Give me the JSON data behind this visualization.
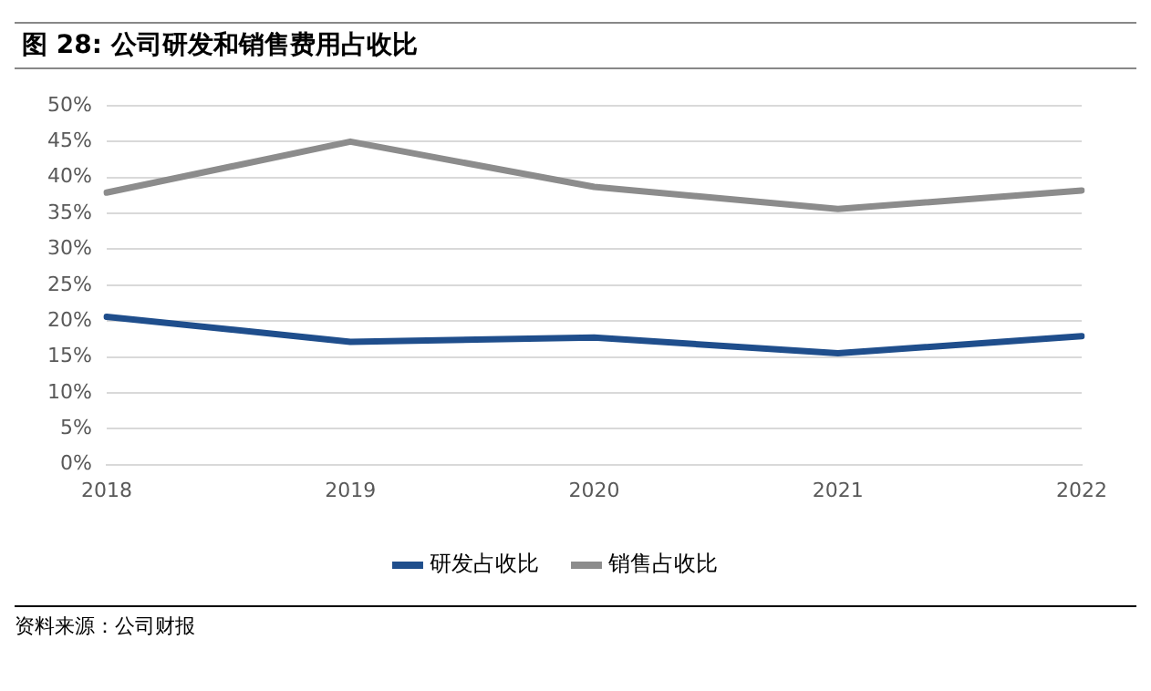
{
  "chart_data": {
    "type": "line",
    "title": "图 28:  公司研发和销售费用占收比",
    "categories": [
      "2018",
      "2019",
      "2020",
      "2021",
      "2022"
    ],
    "series": [
      {
        "name": "研发占收比",
        "color": "#1f4e8c",
        "values": [
          20.6,
          17.1,
          17.7,
          15.5,
          17.9
        ]
      },
      {
        "name": "销售占收比",
        "color": "#8c8c8c",
        "values": [
          37.9,
          45.0,
          38.7,
          35.6,
          38.2
        ]
      }
    ],
    "ylim": [
      0,
      50
    ],
    "yticks": [
      {
        "value": 0,
        "label": "0%"
      },
      {
        "value": 5,
        "label": "5%"
      },
      {
        "value": 10,
        "label": "10%"
      },
      {
        "value": 15,
        "label": "15%"
      },
      {
        "value": 20,
        "label": "20%"
      },
      {
        "value": 25,
        "label": "25%"
      },
      {
        "value": 30,
        "label": "30%"
      },
      {
        "value": 35,
        "label": "35%"
      },
      {
        "value": 40,
        "label": "40%"
      },
      {
        "value": 45,
        "label": "45%"
      },
      {
        "value": 50,
        "label": "50%"
      }
    ],
    "grid": "y",
    "legend": "bottom",
    "marker": "none",
    "line_style": "solid",
    "annotations": [
      "资料来源：公司财报"
    ]
  }
}
